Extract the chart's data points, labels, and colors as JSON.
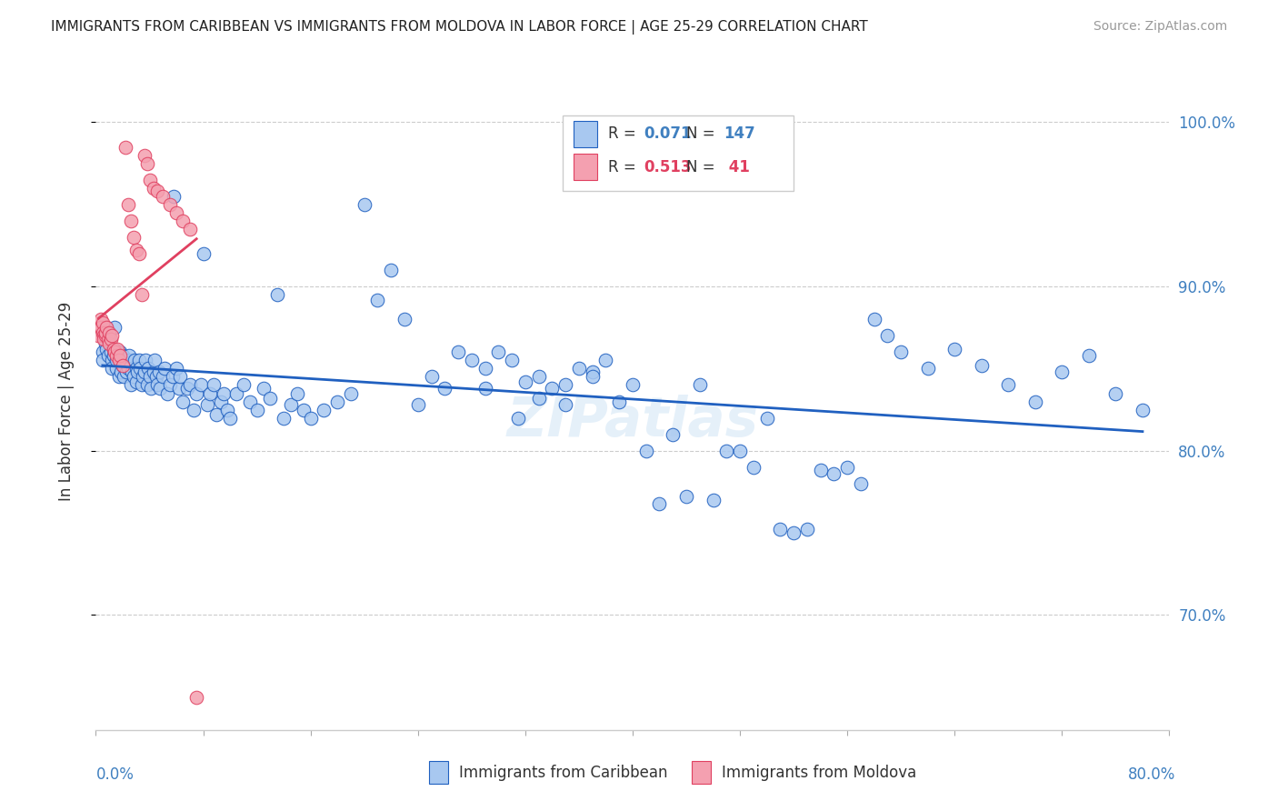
{
  "title": "IMMIGRANTS FROM CARIBBEAN VS IMMIGRANTS FROM MOLDOVA IN LABOR FORCE | AGE 25-29 CORRELATION CHART",
  "source": "Source: ZipAtlas.com",
  "ylabel": "In Labor Force | Age 25-29",
  "xlim": [
    0.0,
    0.8
  ],
  "ylim": [
    0.63,
    1.03
  ],
  "legend_blue_r": "0.071",
  "legend_blue_n": "147",
  "legend_pink_r": "0.513",
  "legend_pink_n": "41",
  "color_blue": "#a8c8f0",
  "color_pink": "#f4a0b0",
  "color_line_blue": "#2060c0",
  "color_line_pink": "#e04060",
  "color_axis": "#4080c0",
  "watermark": "ZIPatlas",
  "caribbean_x": [
    0.005,
    0.005,
    0.007,
    0.007,
    0.008,
    0.008,
    0.009,
    0.01,
    0.01,
    0.011,
    0.012,
    0.012,
    0.013,
    0.013,
    0.014,
    0.015,
    0.015,
    0.016,
    0.017,
    0.018,
    0.018,
    0.019,
    0.02,
    0.02,
    0.021,
    0.022,
    0.023,
    0.024,
    0.025,
    0.025,
    0.026,
    0.027,
    0.028,
    0.029,
    0.03,
    0.03,
    0.031,
    0.032,
    0.033,
    0.034,
    0.035,
    0.036,
    0.037,
    0.038,
    0.039,
    0.04,
    0.041,
    0.043,
    0.044,
    0.045,
    0.046,
    0.047,
    0.048,
    0.05,
    0.051,
    0.053,
    0.055,
    0.057,
    0.058,
    0.06,
    0.062,
    0.063,
    0.065,
    0.068,
    0.07,
    0.073,
    0.075,
    0.078,
    0.08,
    0.083,
    0.085,
    0.088,
    0.09,
    0.093,
    0.095,
    0.098,
    0.1,
    0.105,
    0.11,
    0.115,
    0.12,
    0.125,
    0.13,
    0.135,
    0.14,
    0.145,
    0.15,
    0.155,
    0.16,
    0.17,
    0.18,
    0.19,
    0.2,
    0.21,
    0.22,
    0.23,
    0.24,
    0.25,
    0.26,
    0.27,
    0.28,
    0.29,
    0.3,
    0.31,
    0.32,
    0.33,
    0.34,
    0.35,
    0.36,
    0.37,
    0.38,
    0.39,
    0.4,
    0.41,
    0.42,
    0.43,
    0.44,
    0.45,
    0.46,
    0.47,
    0.48,
    0.49,
    0.5,
    0.51,
    0.52,
    0.53,
    0.54,
    0.55,
    0.56,
    0.57,
    0.58,
    0.59,
    0.6,
    0.62,
    0.64,
    0.66,
    0.68,
    0.7,
    0.72,
    0.74,
    0.76,
    0.78,
    0.33,
    0.35,
    0.37,
    0.29,
    0.315
  ],
  "caribbean_y": [
    0.86,
    0.855,
    0.87,
    0.865,
    0.875,
    0.862,
    0.858,
    0.868,
    0.872,
    0.86,
    0.855,
    0.85,
    0.858,
    0.862,
    0.875,
    0.85,
    0.855,
    0.86,
    0.845,
    0.855,
    0.86,
    0.848,
    0.852,
    0.858,
    0.845,
    0.855,
    0.848,
    0.85,
    0.855,
    0.858,
    0.84,
    0.848,
    0.845,
    0.855,
    0.85,
    0.842,
    0.848,
    0.855,
    0.85,
    0.84,
    0.845,
    0.848,
    0.855,
    0.84,
    0.85,
    0.845,
    0.838,
    0.848,
    0.855,
    0.845,
    0.84,
    0.848,
    0.838,
    0.845,
    0.85,
    0.835,
    0.84,
    0.845,
    0.955,
    0.85,
    0.838,
    0.845,
    0.83,
    0.838,
    0.84,
    0.825,
    0.835,
    0.84,
    0.92,
    0.828,
    0.835,
    0.84,
    0.822,
    0.83,
    0.835,
    0.825,
    0.82,
    0.835,
    0.84,
    0.83,
    0.825,
    0.838,
    0.832,
    0.895,
    0.82,
    0.828,
    0.835,
    0.825,
    0.82,
    0.825,
    0.83,
    0.835,
    0.95,
    0.892,
    0.91,
    0.88,
    0.828,
    0.845,
    0.838,
    0.86,
    0.855,
    0.85,
    0.86,
    0.855,
    0.842,
    0.845,
    0.838,
    0.84,
    0.85,
    0.848,
    0.855,
    0.83,
    0.84,
    0.8,
    0.768,
    0.81,
    0.772,
    0.84,
    0.77,
    0.8,
    0.8,
    0.79,
    0.82,
    0.752,
    0.75,
    0.752,
    0.788,
    0.786,
    0.79,
    0.78,
    0.88,
    0.87,
    0.86,
    0.85,
    0.862,
    0.852,
    0.84,
    0.83,
    0.848,
    0.858,
    0.835,
    0.825,
    0.832,
    0.828,
    0.845,
    0.838,
    0.82
  ],
  "moldova_x": [
    0.002,
    0.003,
    0.004,
    0.004,
    0.005,
    0.005,
    0.006,
    0.006,
    0.007,
    0.007,
    0.008,
    0.009,
    0.01,
    0.01,
    0.011,
    0.012,
    0.013,
    0.014,
    0.015,
    0.016,
    0.017,
    0.018,
    0.02,
    0.022,
    0.024,
    0.026,
    0.028,
    0.03,
    0.032,
    0.034,
    0.036,
    0.038,
    0.04,
    0.043,
    0.046,
    0.05,
    0.055,
    0.06,
    0.065,
    0.07,
    0.075
  ],
  "moldova_y": [
    0.87,
    0.875,
    0.88,
    0.875,
    0.878,
    0.872,
    0.87,
    0.868,
    0.87,
    0.872,
    0.875,
    0.868,
    0.872,
    0.865,
    0.868,
    0.87,
    0.862,
    0.86,
    0.858,
    0.862,
    0.855,
    0.858,
    0.852,
    0.985,
    0.95,
    0.94,
    0.93,
    0.922,
    0.92,
    0.895,
    0.98,
    0.975,
    0.965,
    0.96,
    0.958,
    0.955,
    0.95,
    0.945,
    0.94,
    0.935,
    0.65
  ]
}
